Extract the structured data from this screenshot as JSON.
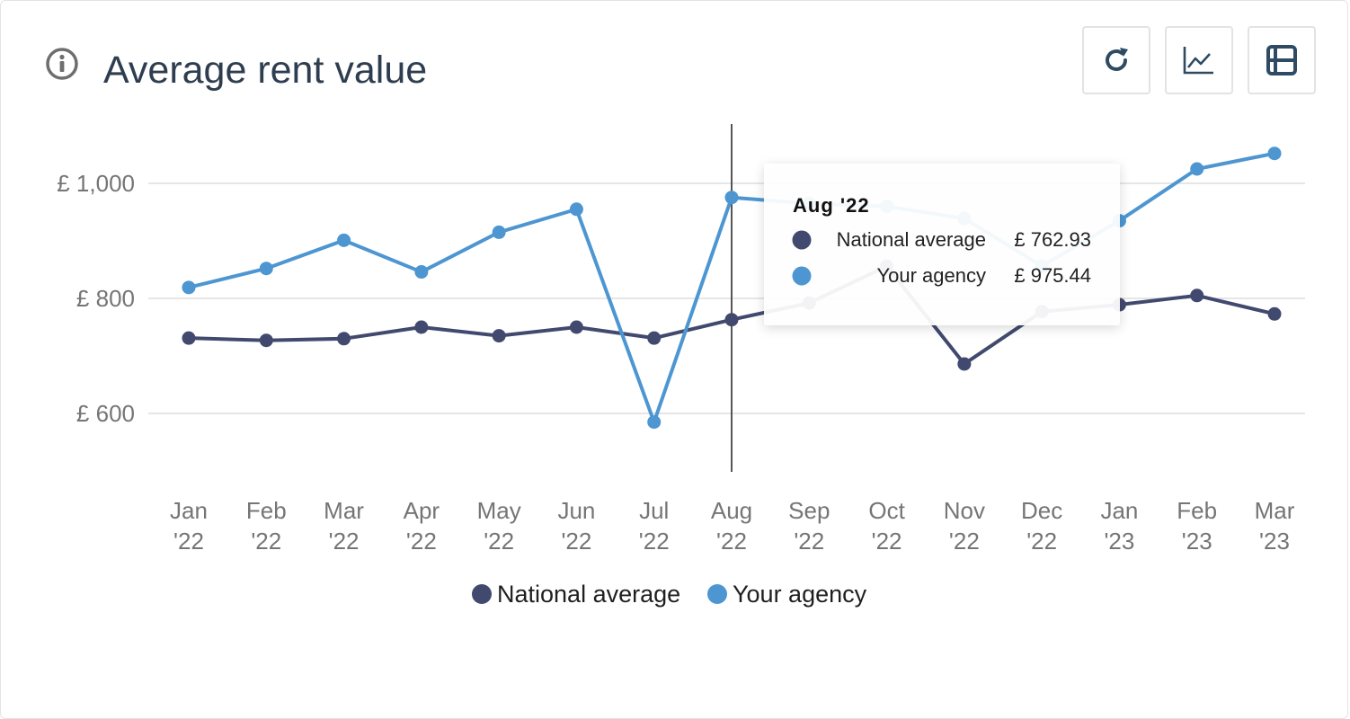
{
  "header": {
    "title": "Average rent value"
  },
  "toolbar": {
    "refresh_icon": "refresh-icon",
    "chart_icon": "line-chart-icon",
    "layout_icon": "layout-icon"
  },
  "colors": {
    "national": "#414a6e",
    "agency": "#4d96d1",
    "title": "#2e3d50",
    "grid": "#e6e6e6"
  },
  "chart_data": {
    "type": "line",
    "title": "Average rent value",
    "categories": [
      [
        "Jan",
        "'22"
      ],
      [
        "Feb",
        "'22"
      ],
      [
        "Mar",
        "'22"
      ],
      [
        "Apr",
        "'22"
      ],
      [
        "May",
        "'22"
      ],
      [
        "Jun",
        "'22"
      ],
      [
        "Jul",
        "'22"
      ],
      [
        "Aug",
        "'22"
      ],
      [
        "Sep",
        "'22"
      ],
      [
        "Oct",
        "'22"
      ],
      [
        "Nov",
        "'22"
      ],
      [
        "Dec",
        "'22"
      ],
      [
        "Jan",
        "'23"
      ],
      [
        "Feb",
        "'23"
      ],
      [
        "Mar",
        "'23"
      ]
    ],
    "y_ticks": [
      {
        "value": 600,
        "label": "£ 600"
      },
      {
        "value": 800,
        "label": "£ 800"
      },
      {
        "value": 1000,
        "label": "£ 1,000"
      }
    ],
    "ylim": [
      520,
      1125
    ],
    "grid": true,
    "legend_position": "bottom-center",
    "series": [
      {
        "name": "National average",
        "color": "#414a6e",
        "values": [
          731,
          727,
          730,
          750,
          735,
          750,
          731,
          762.93,
          792,
          856,
          686,
          777,
          789,
          805,
          773
        ]
      },
      {
        "name": "Your agency",
        "color": "#4d96d1",
        "values": [
          819,
          852,
          901,
          846,
          915,
          955,
          585,
          975.44,
          965,
          960,
          939,
          856,
          935,
          1025,
          1052
        ]
      }
    ],
    "hover_index": 7,
    "tooltip": {
      "title": "Aug '22",
      "rows": [
        {
          "label": "National average",
          "value": "£ 762.93",
          "color": "#414a6e"
        },
        {
          "label": "Your agency",
          "value": "£ 975.44",
          "color": "#4d96d1"
        }
      ]
    }
  }
}
